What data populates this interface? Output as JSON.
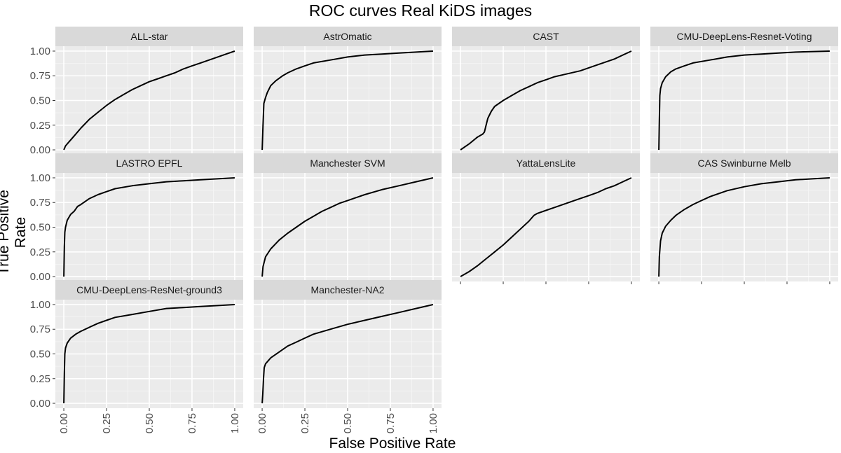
{
  "chart_data": {
    "type": "line",
    "title": "ROC curves Real KiDS images",
    "xlabel": "False Positive Rate",
    "ylabel": "True Positive Rate",
    "xlim": [
      0,
      1
    ],
    "ylim": [
      0,
      1
    ],
    "x_ticks": [
      "0.00",
      "0.25",
      "0.50",
      "0.75",
      "1.00"
    ],
    "y_ticks": [
      "0.00",
      "0.25",
      "0.50",
      "0.75",
      "1.00"
    ],
    "grid": true,
    "layout": "faceted 3 rows x 4 columns",
    "panels": [
      {
        "name": "ALL-star",
        "points": [
          [
            0,
            0
          ],
          [
            0.01,
            0.04
          ],
          [
            0.03,
            0.08
          ],
          [
            0.06,
            0.14
          ],
          [
            0.1,
            0.22
          ],
          [
            0.15,
            0.31
          ],
          [
            0.2,
            0.38
          ],
          [
            0.25,
            0.45
          ],
          [
            0.3,
            0.51
          ],
          [
            0.35,
            0.56
          ],
          [
            0.4,
            0.61
          ],
          [
            0.45,
            0.65
          ],
          [
            0.5,
            0.69
          ],
          [
            0.55,
            0.72
          ],
          [
            0.6,
            0.75
          ],
          [
            0.65,
            0.78
          ],
          [
            0.7,
            0.82
          ],
          [
            0.75,
            0.85
          ],
          [
            0.8,
            0.88
          ],
          [
            0.85,
            0.91
          ],
          [
            0.9,
            0.94
          ],
          [
            0.95,
            0.97
          ],
          [
            1,
            1
          ]
        ]
      },
      {
        "name": "AstrOmatic",
        "points": [
          [
            0,
            0
          ],
          [
            0.005,
            0.25
          ],
          [
            0.01,
            0.47
          ],
          [
            0.02,
            0.53
          ],
          [
            0.03,
            0.58
          ],
          [
            0.05,
            0.65
          ],
          [
            0.08,
            0.7
          ],
          [
            0.12,
            0.75
          ],
          [
            0.15,
            0.78
          ],
          [
            0.2,
            0.82
          ],
          [
            0.25,
            0.85
          ],
          [
            0.3,
            0.88
          ],
          [
            0.4,
            0.91
          ],
          [
            0.5,
            0.94
          ],
          [
            0.6,
            0.96
          ],
          [
            0.7,
            0.97
          ],
          [
            0.8,
            0.98
          ],
          [
            0.9,
            0.99
          ],
          [
            1,
            1
          ]
        ]
      },
      {
        "name": "CAST",
        "points": [
          [
            0,
            0
          ],
          [
            0.05,
            0.06
          ],
          [
            0.1,
            0.13
          ],
          [
            0.13,
            0.16
          ],
          [
            0.14,
            0.18
          ],
          [
            0.15,
            0.25
          ],
          [
            0.16,
            0.32
          ],
          [
            0.18,
            0.39
          ],
          [
            0.2,
            0.44
          ],
          [
            0.25,
            0.5
          ],
          [
            0.3,
            0.55
          ],
          [
            0.35,
            0.6
          ],
          [
            0.4,
            0.64
          ],
          [
            0.45,
            0.68
          ],
          [
            0.5,
            0.71
          ],
          [
            0.55,
            0.74
          ],
          [
            0.6,
            0.76
          ],
          [
            0.7,
            0.8
          ],
          [
            0.8,
            0.86
          ],
          [
            0.9,
            0.92
          ],
          [
            0.95,
            0.96
          ],
          [
            1,
            1
          ]
        ]
      },
      {
        "name": "CMU-DeepLens-Resnet-Voting",
        "points": [
          [
            0,
            0
          ],
          [
            0.003,
            0.3
          ],
          [
            0.006,
            0.55
          ],
          [
            0.01,
            0.62
          ],
          [
            0.02,
            0.68
          ],
          [
            0.04,
            0.74
          ],
          [
            0.07,
            0.79
          ],
          [
            0.1,
            0.82
          ],
          [
            0.15,
            0.85
          ],
          [
            0.2,
            0.88
          ],
          [
            0.3,
            0.91
          ],
          [
            0.4,
            0.94
          ],
          [
            0.5,
            0.96
          ],
          [
            0.6,
            0.97
          ],
          [
            0.7,
            0.98
          ],
          [
            0.8,
            0.99
          ],
          [
            1,
            1
          ]
        ]
      },
      {
        "name": "LASTRO EPFL",
        "points": [
          [
            0,
            0
          ],
          [
            0.003,
            0.3
          ],
          [
            0.006,
            0.45
          ],
          [
            0.01,
            0.5
          ],
          [
            0.02,
            0.57
          ],
          [
            0.04,
            0.63
          ],
          [
            0.06,
            0.66
          ],
          [
            0.08,
            0.71
          ],
          [
            0.1,
            0.73
          ],
          [
            0.15,
            0.79
          ],
          [
            0.2,
            0.83
          ],
          [
            0.25,
            0.86
          ],
          [
            0.3,
            0.89
          ],
          [
            0.4,
            0.92
          ],
          [
            0.5,
            0.94
          ],
          [
            0.6,
            0.96
          ],
          [
            0.7,
            0.97
          ],
          [
            0.8,
            0.98
          ],
          [
            0.9,
            0.99
          ],
          [
            1,
            1
          ]
        ]
      },
      {
        "name": "Manchester SVM",
        "points": [
          [
            0,
            0
          ],
          [
            0.005,
            0.1
          ],
          [
            0.02,
            0.2
          ],
          [
            0.05,
            0.28
          ],
          [
            0.1,
            0.37
          ],
          [
            0.15,
            0.44
          ],
          [
            0.2,
            0.5
          ],
          [
            0.25,
            0.56
          ],
          [
            0.3,
            0.61
          ],
          [
            0.35,
            0.66
          ],
          [
            0.4,
            0.7
          ],
          [
            0.45,
            0.74
          ],
          [
            0.5,
            0.77
          ],
          [
            0.55,
            0.8
          ],
          [
            0.6,
            0.83
          ],
          [
            0.7,
            0.88
          ],
          [
            0.8,
            0.92
          ],
          [
            0.9,
            0.96
          ],
          [
            1,
            1
          ]
        ]
      },
      {
        "name": "YattaLensLite",
        "points": [
          [
            0,
            0
          ],
          [
            0.05,
            0.05
          ],
          [
            0.1,
            0.11
          ],
          [
            0.15,
            0.18
          ],
          [
            0.2,
            0.25
          ],
          [
            0.25,
            0.32
          ],
          [
            0.3,
            0.4
          ],
          [
            0.35,
            0.48
          ],
          [
            0.4,
            0.56
          ],
          [
            0.43,
            0.62
          ],
          [
            0.45,
            0.64
          ],
          [
            0.5,
            0.67
          ],
          [
            0.55,
            0.7
          ],
          [
            0.6,
            0.73
          ],
          [
            0.65,
            0.76
          ],
          [
            0.7,
            0.79
          ],
          [
            0.75,
            0.82
          ],
          [
            0.8,
            0.85
          ],
          [
            0.85,
            0.89
          ],
          [
            0.9,
            0.92
          ],
          [
            0.95,
            0.96
          ],
          [
            1,
            1
          ]
        ]
      },
      {
        "name": "CAS Swinburne Melb",
        "points": [
          [
            0,
            0
          ],
          [
            0.003,
            0.2
          ],
          [
            0.01,
            0.36
          ],
          [
            0.02,
            0.44
          ],
          [
            0.04,
            0.51
          ],
          [
            0.07,
            0.57
          ],
          [
            0.1,
            0.62
          ],
          [
            0.15,
            0.68
          ],
          [
            0.2,
            0.73
          ],
          [
            0.25,
            0.77
          ],
          [
            0.3,
            0.81
          ],
          [
            0.4,
            0.87
          ],
          [
            0.5,
            0.91
          ],
          [
            0.6,
            0.94
          ],
          [
            0.7,
            0.96
          ],
          [
            0.8,
            0.98
          ],
          [
            0.9,
            0.99
          ],
          [
            1,
            1
          ]
        ]
      },
      {
        "name": "CMU-DeepLens-ResNet-ground3",
        "points": [
          [
            0,
            0
          ],
          [
            0.003,
            0.3
          ],
          [
            0.006,
            0.5
          ],
          [
            0.01,
            0.56
          ],
          [
            0.02,
            0.61
          ],
          [
            0.04,
            0.66
          ],
          [
            0.07,
            0.7
          ],
          [
            0.1,
            0.73
          ],
          [
            0.15,
            0.77
          ],
          [
            0.2,
            0.81
          ],
          [
            0.25,
            0.84
          ],
          [
            0.3,
            0.87
          ],
          [
            0.4,
            0.9
          ],
          [
            0.5,
            0.93
          ],
          [
            0.6,
            0.96
          ],
          [
            0.7,
            0.97
          ],
          [
            0.8,
            0.98
          ],
          [
            0.9,
            0.99
          ],
          [
            1,
            1
          ]
        ]
      },
      {
        "name": "Manchester-NA2",
        "points": [
          [
            0,
            0
          ],
          [
            0.004,
            0.1
          ],
          [
            0.008,
            0.25
          ],
          [
            0.012,
            0.36
          ],
          [
            0.02,
            0.4
          ],
          [
            0.05,
            0.46
          ],
          [
            0.1,
            0.52
          ],
          [
            0.15,
            0.58
          ],
          [
            0.2,
            0.62
          ],
          [
            0.25,
            0.66
          ],
          [
            0.3,
            0.7
          ],
          [
            0.4,
            0.75
          ],
          [
            0.5,
            0.8
          ],
          [
            0.6,
            0.84
          ],
          [
            0.7,
            0.88
          ],
          [
            0.8,
            0.92
          ],
          [
            0.9,
            0.96
          ],
          [
            1,
            1
          ]
        ]
      }
    ]
  }
}
